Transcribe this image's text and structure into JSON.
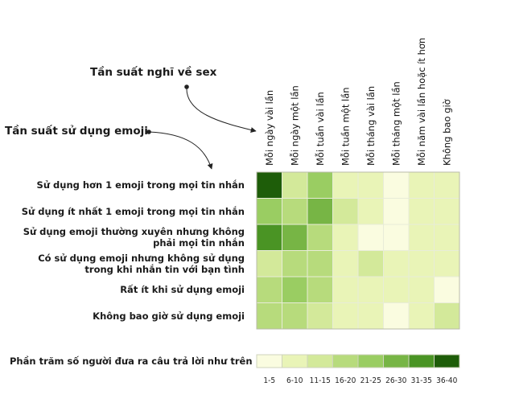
{
  "annotations": {
    "sex_axis": "Tần suất nghĩ về sex",
    "emoji_axis": "Tần suất sử dụng emoji"
  },
  "chart_data": {
    "type": "heatmap",
    "columns": [
      "Mỗi ngày vài lần",
      "Mỗi ngày một lần",
      "Mỗi tuần vài lần",
      "Mỗi tuần một lần",
      "Mỗi tháng vài lần",
      "Mỗi tháng một lần",
      "Mỗi năm vài lần hoặc ít hơn",
      "Không bao giờ"
    ],
    "rows": [
      "Sử dụng hơn 1 emoji trong mọi tin nhắn",
      "Sử dụng ít nhất 1 emoji trong mọi tin nhắn",
      "Sử dụng emoji thường xuyên nhưng không\nphải mọi tin nhắn",
      "Có sử dụng emoji nhưng không sử dụng\ntrong khi nhắn tin với bạn tình",
      "Rất ít khi sử dụng emoji",
      "Không bao giờ sử dụng emoji"
    ],
    "values": [
      [
        38,
        13,
        23,
        8,
        8,
        3,
        8,
        8
      ],
      [
        23,
        18,
        28,
        13,
        8,
        3,
        8,
        8
      ],
      [
        33,
        28,
        18,
        8,
        3,
        3,
        8,
        8
      ],
      [
        13,
        18,
        18,
        8,
        13,
        8,
        8,
        8
      ],
      [
        18,
        23,
        18,
        8,
        8,
        8,
        8,
        3
      ],
      [
        18,
        18,
        13,
        8,
        8,
        3,
        8,
        13
      ]
    ],
    "legend": {
      "title": "Phần trăm số người đưa ra câu trả lời như trên",
      "bins": [
        "1-5",
        "6-10",
        "11-15",
        "16-20",
        "21-25",
        "26-30",
        "31-35",
        "36-40"
      ],
      "colors": [
        "#fafce0",
        "#e9f4b7",
        "#d3e99a",
        "#b7db7c",
        "#9acd62",
        "#77b545",
        "#4a9424",
        "#1e5d09"
      ]
    }
  }
}
